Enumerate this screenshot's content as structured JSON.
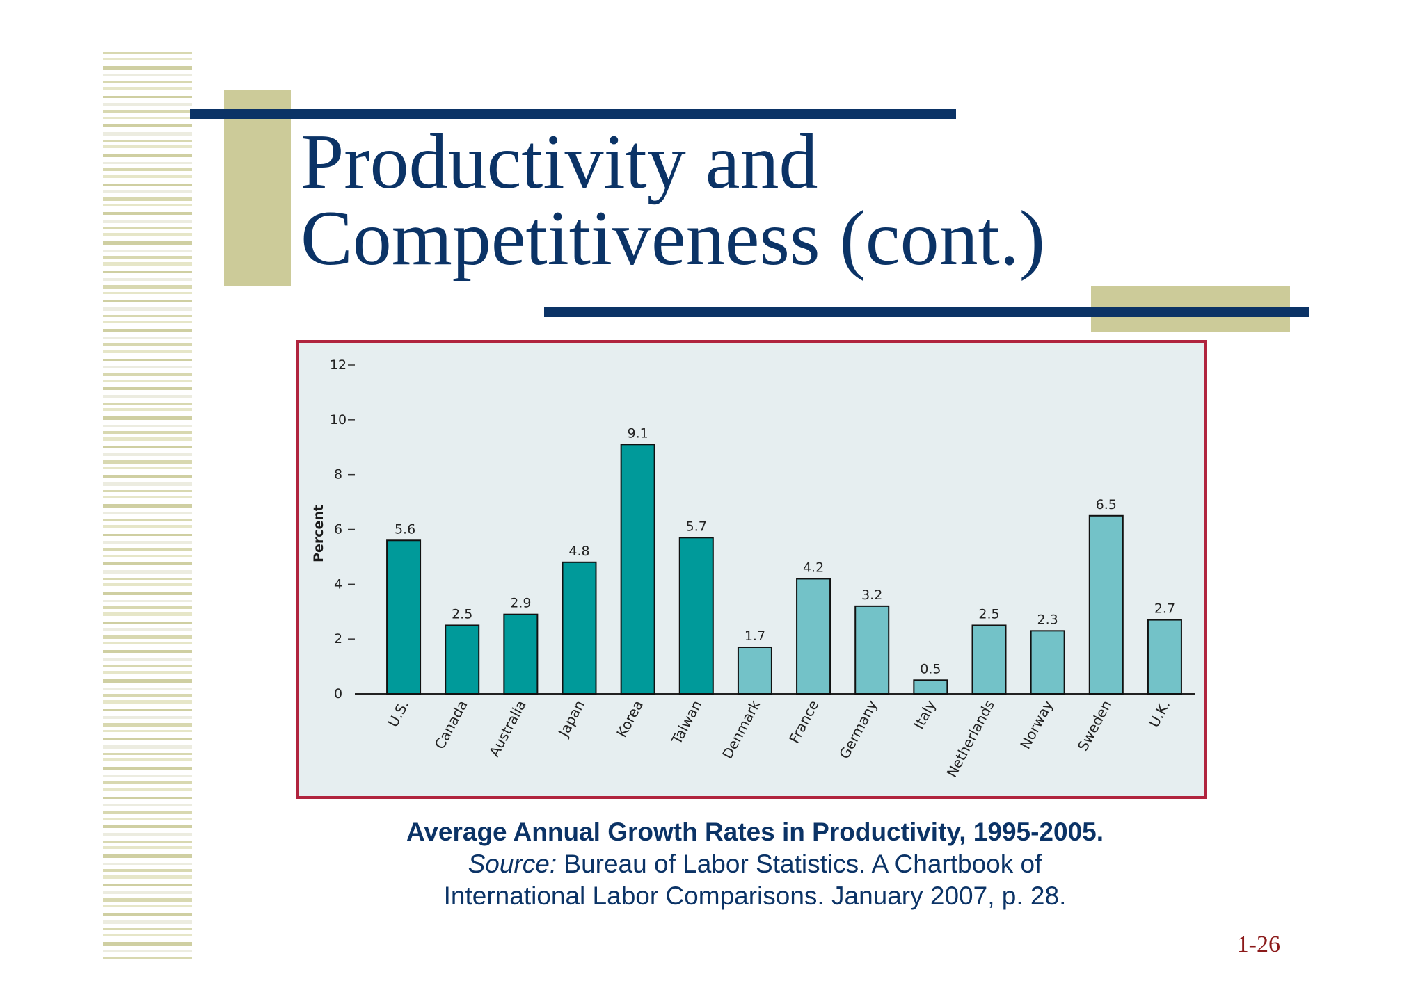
{
  "slide": {
    "title_line1": "Productivity and",
    "title_line2": "Competitiveness (cont.)",
    "page_number": "1-26",
    "colors": {
      "title": "#0b3366",
      "navy_bar": "#0b3366",
      "olive_block": "#cccb99",
      "frame_border": "#b0243e",
      "chart_bg": "#e6eef0",
      "bar_dark": "#009a9a",
      "bar_light": "#73c2c8"
    }
  },
  "caption": {
    "title": "Average Annual Growth Rates in Productivity, 1995-2005.",
    "source_label": "Source:",
    "source_text_1": " Bureau of Labor Statistics.  A Chartbook of",
    "source_text_2": "International Labor Comparisons. January 2007, p. 28."
  },
  "chart_data": {
    "type": "bar",
    "ylabel": "Percent",
    "ylim": [
      0,
      12
    ],
    "yticks": [
      0,
      2,
      4,
      6,
      8,
      10,
      12
    ],
    "categories": [
      "U.S.",
      "Canada",
      "Australia",
      "Japan",
      "Korea",
      "Taiwan",
      "Denmark",
      "France",
      "Germany",
      "Italy",
      "Netherlands",
      "Norway",
      "Sweden",
      "U.K."
    ],
    "values": [
      5.6,
      2.5,
      2.9,
      4.8,
      9.1,
      5.7,
      1.7,
      4.2,
      3.2,
      0.5,
      2.5,
      2.3,
      6.5,
      2.7
    ],
    "value_labels": [
      "5.6",
      "2.5",
      "2.9",
      "4.8",
      "9.1",
      "5.7",
      "1.7",
      "4.2",
      "3.2",
      "0.5",
      "2.5",
      "2.3",
      "6.5",
      "2.7"
    ],
    "bar_colors": [
      "#009a9a",
      "#009a9a",
      "#009a9a",
      "#009a9a",
      "#009a9a",
      "#009a9a",
      "#73c2c8",
      "#73c2c8",
      "#73c2c8",
      "#73c2c8",
      "#73c2c8",
      "#73c2c8",
      "#73c2c8",
      "#73c2c8"
    ],
    "grid": false,
    "legend": "none"
  }
}
